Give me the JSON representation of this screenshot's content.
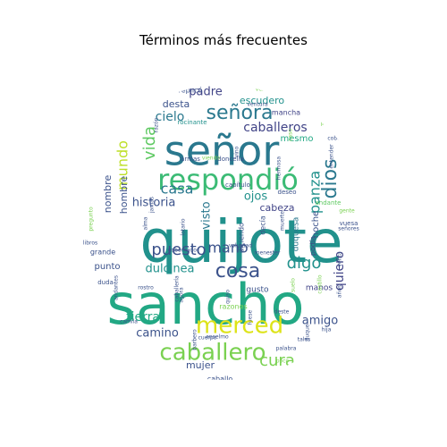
{
  "figure": {
    "title": "Términos más frecuentes"
  },
  "palette": [
    "#440154",
    "#3b528b",
    "#21918c",
    "#5ec962",
    "#fde725",
    "#2a788e",
    "#7ad151",
    "#414487",
    "#22a884",
    "#bddf26"
  ],
  "words": [
    {
      "text": "quijote",
      "weight": 100,
      "color": "#21918c"
    },
    {
      "text": "sancho",
      "weight": 95,
      "color": "#22a884"
    },
    {
      "text": "señor",
      "weight": 70,
      "color": "#2a788e"
    },
    {
      "text": "respondió",
      "weight": 52,
      "color": "#3bbb75"
    },
    {
      "text": "merced",
      "weight": 38,
      "color": "#dde318"
    },
    {
      "text": "caballero",
      "weight": 36,
      "color": "#7ad151"
    },
    {
      "text": "señora",
      "weight": 30,
      "color": "#2a788e"
    },
    {
      "text": "dios",
      "weight": 28,
      "color": "#2a788e"
    },
    {
      "text": "cosa",
      "weight": 27,
      "color": "#3b528b"
    },
    {
      "text": "vida",
      "weight": 24,
      "color": "#5ec962"
    },
    {
      "text": "mundo",
      "weight": 22,
      "color": "#bddf26"
    },
    {
      "text": "puesto",
      "weight": 23,
      "color": "#3b528b"
    },
    {
      "text": "panza",
      "weight": 22,
      "color": "#21918c"
    },
    {
      "text": "digo",
      "weight": 22,
      "color": "#21918c"
    },
    {
      "text": "mano",
      "weight": 20,
      "color": "#3b528b"
    },
    {
      "text": "casa",
      "weight": 20,
      "color": "#2a788e"
    },
    {
      "text": "cura",
      "weight": 20,
      "color": "#7ad151"
    },
    {
      "text": "quiero",
      "weight": 18,
      "color": "#414487"
    },
    {
      "text": "caballeros",
      "weight": 18,
      "color": "#414487"
    },
    {
      "text": "cielo",
      "weight": 17,
      "color": "#2a788e"
    },
    {
      "text": "padre",
      "weight": 17,
      "color": "#414487"
    },
    {
      "text": "tierra",
      "weight": 17,
      "color": "#22a884"
    },
    {
      "text": "amigo",
      "weight": 16,
      "color": "#3b528b"
    },
    {
      "text": "historia",
      "weight": 15,
      "color": "#3b528b"
    },
    {
      "text": "dulcinea",
      "weight": 15,
      "color": "#21918c"
    },
    {
      "text": "camino",
      "weight": 15,
      "color": "#3b528b"
    },
    {
      "text": "visto",
      "weight": 15,
      "color": "#2a788e"
    },
    {
      "text": "ojos",
      "weight": 14,
      "color": "#21918c"
    },
    {
      "text": "nombre",
      "weight": 13,
      "color": "#3b528b"
    },
    {
      "text": "hombre",
      "weight": 13,
      "color": "#3b528b"
    },
    {
      "text": "mujer",
      "weight": 12,
      "color": "#3b528b"
    },
    {
      "text": "cabeza",
      "weight": 12,
      "color": "#414487"
    },
    {
      "text": "desta",
      "weight": 12,
      "color": "#3b528b"
    },
    {
      "text": "escudero",
      "weight": 12,
      "color": "#21918c"
    },
    {
      "text": "mesmo",
      "weight": 11,
      "color": "#22a884"
    },
    {
      "text": "punto",
      "weight": 11,
      "color": "#3b528b"
    },
    {
      "text": "noche",
      "weight": 11,
      "color": "#3b528b"
    },
    {
      "text": "manos",
      "weight": 10,
      "color": "#414487"
    },
    {
      "text": "gusto",
      "weight": 10,
      "color": "#3b528b"
    },
    {
      "text": "duquesa",
      "weight": 10,
      "color": "#2a788e"
    },
    {
      "text": "podía",
      "weight": 9,
      "color": "#414487"
    },
    {
      "text": "caballo",
      "weight": 9,
      "color": "#3b528b"
    },
    {
      "text": "grande",
      "weight": 9,
      "color": "#3b528b"
    },
    {
      "text": "razones",
      "weight": 9,
      "color": "#7ad151"
    },
    {
      "text": "decía",
      "weight": 8,
      "color": "#3b528b"
    },
    {
      "text": "diciendo",
      "weight": 8,
      "color": "#3b528b"
    },
    {
      "text": "replicó",
      "weight": 8,
      "color": "#3b528b"
    },
    {
      "text": "rocinante",
      "weight": 8,
      "color": "#21918c"
    },
    {
      "text": "mancha",
      "weight": 8,
      "color": "#414487"
    },
    {
      "text": "andante",
      "weight": 7,
      "color": "#5ec962"
    },
    {
      "text": "armas",
      "weight": 7,
      "color": "#3b528b"
    },
    {
      "text": "doncella",
      "weight": 7,
      "color": "#3b528b"
    },
    {
      "text": "capítulo",
      "weight": 7,
      "color": "#3b528b"
    },
    {
      "text": "deseo",
      "weight": 7,
      "color": "#3b528b"
    },
    {
      "text": "duda",
      "weight": 7,
      "color": "#3b528b"
    },
    {
      "text": "libros",
      "weight": 7,
      "color": "#3b528b"
    },
    {
      "text": "voluntad",
      "weight": 7,
      "color": "#3b528b"
    },
    {
      "text": "gobernador",
      "weight": 6,
      "color": "#3b528b"
    },
    {
      "text": "menester",
      "weight": 6,
      "color": "#3b528b"
    },
    {
      "text": "vuesa",
      "weight": 7,
      "color": "#3b528b"
    },
    {
      "text": "señores",
      "weight": 6,
      "color": "#3b528b"
    },
    {
      "text": "gente",
      "weight": 6,
      "color": "#7ad151"
    },
    {
      "text": "coboso",
      "weight": 6,
      "color": "#3b528b"
    },
    {
      "text": "ventura",
      "weight": 6,
      "color": "#3b528b"
    },
    {
      "text": "venía",
      "weight": 6,
      "color": "#7ad151"
    },
    {
      "text": "razón",
      "weight": 6,
      "color": "#3b528b"
    },
    {
      "text": "viendo",
      "weight": 6,
      "color": "#7ad151"
    },
    {
      "text": "quiso",
      "weight": 6,
      "color": "#3b528b"
    },
    {
      "text": "barbero",
      "weight": 6,
      "color": "#3b528b"
    },
    {
      "text": "anselmo",
      "weight": 6,
      "color": "#3b528b"
    },
    {
      "text": "cuerpo",
      "weight": 6,
      "color": "#3b528b"
    },
    {
      "text": "tales",
      "weight": 6,
      "color": "#3b528b"
    },
    {
      "text": "hija",
      "weight": 6,
      "color": "#3b528b"
    },
    {
      "text": "años",
      "weight": 6,
      "color": "#3b528b"
    },
    {
      "text": "deste",
      "weight": 6,
      "color": "#3b528b"
    },
    {
      "text": "camila",
      "weight": 6,
      "color": "#3b528b"
    },
    {
      "text": "rostro",
      "weight": 6,
      "color": "#3b528b"
    },
    {
      "text": "agora",
      "weight": 6,
      "color": "#3b528b"
    },
    {
      "text": "alma",
      "weight": 6,
      "color": "#3b528b"
    },
    {
      "text": "jamás",
      "weight": 6,
      "color": "#3b528b"
    },
    {
      "text": "lotario",
      "weight": 6,
      "color": "#3b528b"
    },
    {
      "text": "muerte",
      "weight": 6,
      "color": "#3b528b"
    },
    {
      "text": "fuese",
      "weight": 6,
      "color": "#3b528b"
    },
    {
      "text": "palabra",
      "weight": 5,
      "color": "#3b528b"
    },
    {
      "text": "suelo",
      "weight": 5,
      "color": "#7ad151"
    },
    {
      "text": "castillo",
      "weight": 5,
      "color": "#7ad151"
    },
    {
      "text": "hermosa",
      "weight": 5,
      "color": "#3b528b"
    },
    {
      "text": "entender",
      "weight": 5,
      "color": "#3b528b"
    },
    {
      "text": "pregunto",
      "weight": 5,
      "color": "#7ad151"
    },
    {
      "text": "andantes",
      "weight": 5,
      "color": "#3b528b"
    },
    {
      "text": "caballería",
      "weight": 5,
      "color": "#3b528b"
    },
    {
      "text": "venta",
      "weight": 5,
      "color": "#3b528b"
    },
    {
      "text": "pies",
      "weight": 5,
      "color": "#7ad151"
    },
    {
      "text": "poco",
      "weight": 5,
      "color": "#7ad151"
    },
    {
      "text": "duque",
      "weight": 5,
      "color": "#3b528b"
    },
    {
      "text": "vino",
      "weight": 5,
      "color": "#3b528b"
    },
    {
      "text": "caso",
      "weight": 5,
      "color": "#7ad151"
    }
  ]
}
